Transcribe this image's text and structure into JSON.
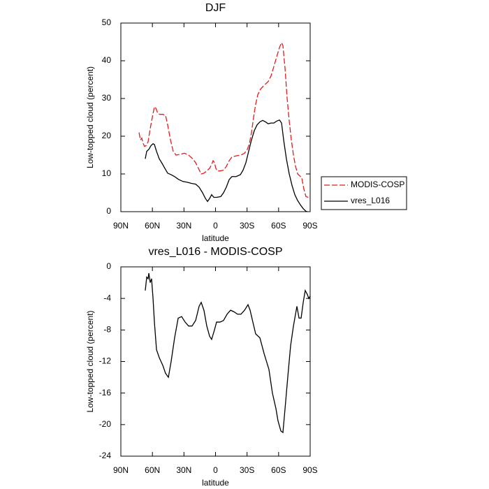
{
  "chart_data": [
    {
      "type": "line",
      "title": "DJF",
      "xlabel": "latitude",
      "ylabel": "Low-topped cloud (percent)",
      "xlim": [
        90,
        -90
      ],
      "xticks": [
        {
          "value": 90,
          "label": "90N"
        },
        {
          "value": 60,
          "label": "60N"
        },
        {
          "value": 30,
          "label": "30N"
        },
        0,
        {
          "value": -30,
          "label": "30S"
        },
        {
          "value": -60,
          "label": "60S"
        },
        {
          "value": -90,
          "label": "90S"
        }
      ],
      "ylim": [
        0,
        50
      ],
      "yticks": [
        0,
        10,
        20,
        30,
        40,
        50
      ],
      "legend": "outside-right",
      "series": [
        {
          "name": "MODIS-COSP",
          "color": "#e41a1c",
          "dash": true,
          "x": [
            72.7,
            71.4,
            70.1,
            68.7,
            67.4,
            66.1,
            64.1,
            62.1,
            60.1,
            58.1,
            56.8,
            54.8,
            52.8,
            50.1,
            47.5,
            45.5,
            42.8,
            40.2,
            37.5,
            33.5,
            29.5,
            25.6,
            21.6,
            18.9,
            16.3,
            13.6,
            11.0,
            8.3,
            5.6,
            3.7,
            2.3,
            1.0,
            -0.3,
            -1.7,
            -4.3,
            -7.6,
            -10.3,
            -13,
            -15.6,
            -19.6,
            -24.2,
            -27.6,
            -30.2,
            -32.2,
            -34.2,
            -36.2,
            -38.2,
            -40.2,
            -42.8,
            -46.2,
            -50.1,
            -52.8,
            -55.5,
            -58.1,
            -60.8,
            -62.8,
            -64.1,
            -66.1,
            -68.1,
            -70.1,
            -72.1,
            -74.1,
            -76.1,
            -78.1,
            -80,
            -82,
            -84,
            -86,
            -88,
            -90
          ],
          "values": [
            21,
            19,
            19.5,
            18,
            17.3,
            17.5,
            18.5,
            22,
            25,
            27.8,
            27.5,
            26,
            25.8,
            25.8,
            25.5,
            23,
            19,
            16,
            15,
            15.2,
            15.5,
            15,
            14,
            13,
            11.5,
            10,
            10.2,
            10.8,
            11.5,
            12.5,
            13.5,
            13,
            11.5,
            10.8,
            10.8,
            11,
            12,
            13.5,
            14.5,
            14.8,
            15,
            15.5,
            16.5,
            18,
            21,
            25,
            28.5,
            31,
            32.5,
            33.5,
            34.5,
            36,
            38.5,
            41,
            43.5,
            44.8,
            44,
            38,
            30,
            24,
            19,
            15,
            12,
            10,
            9.5,
            9,
            6,
            4,
            3.8,
            4
          ]
        },
        {
          "name": "vres_L016",
          "color": "#000000",
          "dash": false,
          "x": [
            66.8,
            65.4,
            63.4,
            61.4,
            59.4,
            58.1,
            56.1,
            53.5,
            50.8,
            48.2,
            45.5,
            42.2,
            38.9,
            34.9,
            30.9,
            26.9,
            22.9,
            18.9,
            15.6,
            12.3,
            9.6,
            7.6,
            5.6,
            3.7,
            1.6,
            -1,
            -5,
            -7.6,
            -10.3,
            -13,
            -15.6,
            -19.6,
            -23.6,
            -26.2,
            -28.9,
            -31.5,
            -34.2,
            -36.9,
            -39.5,
            -42.2,
            -44.8,
            -47.5,
            -50.1,
            -52.8,
            -55.5,
            -58.1,
            -60.8,
            -62.8,
            -64.8,
            -67.4,
            -70.1,
            -72.7,
            -75.4,
            -78,
            -80.7,
            -83.4,
            -86,
            -87.3
          ],
          "values": [
            14,
            16,
            16.5,
            17.5,
            18,
            17.8,
            16,
            14,
            12.8,
            11.5,
            10.2,
            9.8,
            9.3,
            8.5,
            8,
            7.8,
            7.5,
            7.3,
            6.5,
            5,
            3.5,
            2.7,
            3.5,
            4.5,
            3.8,
            3.8,
            4,
            5,
            6.5,
            8.5,
            9.3,
            9.3,
            9.8,
            11,
            13,
            16,
            19,
            21.5,
            23,
            23.8,
            24.2,
            23.8,
            23.3,
            23.5,
            23.5,
            24,
            24.3,
            23.5,
            19,
            14,
            10,
            7,
            4.5,
            3,
            1.8,
            0.8,
            0.1,
            0
          ]
        }
      ]
    },
    {
      "type": "line",
      "title": "vres_L016 - MODIS-COSP",
      "xlabel": "latitude",
      "ylabel": "Low-topped cloud (percent)",
      "xlim": [
        90,
        -90
      ],
      "xticks": [
        {
          "value": 90,
          "label": "90N"
        },
        {
          "value": 60,
          "label": "60N"
        },
        {
          "value": 30,
          "label": "30N"
        },
        0,
        {
          "value": -30,
          "label": "30S"
        },
        {
          "value": -60,
          "label": "60S"
        },
        {
          "value": -90,
          "label": "90S"
        }
      ],
      "ylim": [
        -24,
        0
      ],
      "yticks": [
        -24,
        -20,
        -16,
        -12,
        -8,
        -4,
        0
      ],
      "series": [
        {
          "color": "#000000",
          "dash": false,
          "x": [
            66.8,
            65.4,
            64.1,
            63.4,
            62.1,
            60.8,
            59.4,
            58.1,
            56.1,
            53.5,
            50.1,
            47.5,
            44.8,
            42.2,
            38.9,
            35.5,
            32.2,
            28.9,
            25.6,
            22.3,
            18.9,
            15.6,
            13.6,
            11.0,
            8.3,
            5.6,
            3.7,
            1.0,
            -1.0,
            -4.3,
            -7.6,
            -11.0,
            -14.3,
            -17.6,
            -20.9,
            -24.2,
            -27.6,
            -30.9,
            -32.9,
            -35.5,
            -38.2,
            -42.2,
            -46.2,
            -50.8,
            -54.1,
            -57.5,
            -59.4,
            -62.1,
            -64.1,
            -66.1,
            -68.7,
            -71.4,
            -74.1,
            -77.4,
            -79.4,
            -81.4,
            -83.4,
            -85.3,
            -87.3,
            -88.7,
            -90
          ],
          "values": [
            -3,
            -1.3,
            -1.5,
            -0.8,
            -2,
            -1.5,
            -4,
            -7,
            -10.5,
            -11.5,
            -12.5,
            -13.5,
            -14,
            -12,
            -9,
            -6.5,
            -6.3,
            -7,
            -7.5,
            -7.5,
            -6.8,
            -5,
            -4.5,
            -5.5,
            -7.5,
            -8.8,
            -9.2,
            -8,
            -7,
            -7,
            -6.8,
            -6,
            -5.5,
            -5.7,
            -6,
            -6,
            -5.5,
            -4.8,
            -5.5,
            -7,
            -8.5,
            -9,
            -11,
            -13,
            -16,
            -18,
            -19.5,
            -20.8,
            -21,
            -18,
            -14,
            -10,
            -7.5,
            -5,
            -6.5,
            -6.5,
            -4.5,
            -3,
            -3.5,
            -4,
            -3.7
          ]
        }
      ]
    }
  ]
}
